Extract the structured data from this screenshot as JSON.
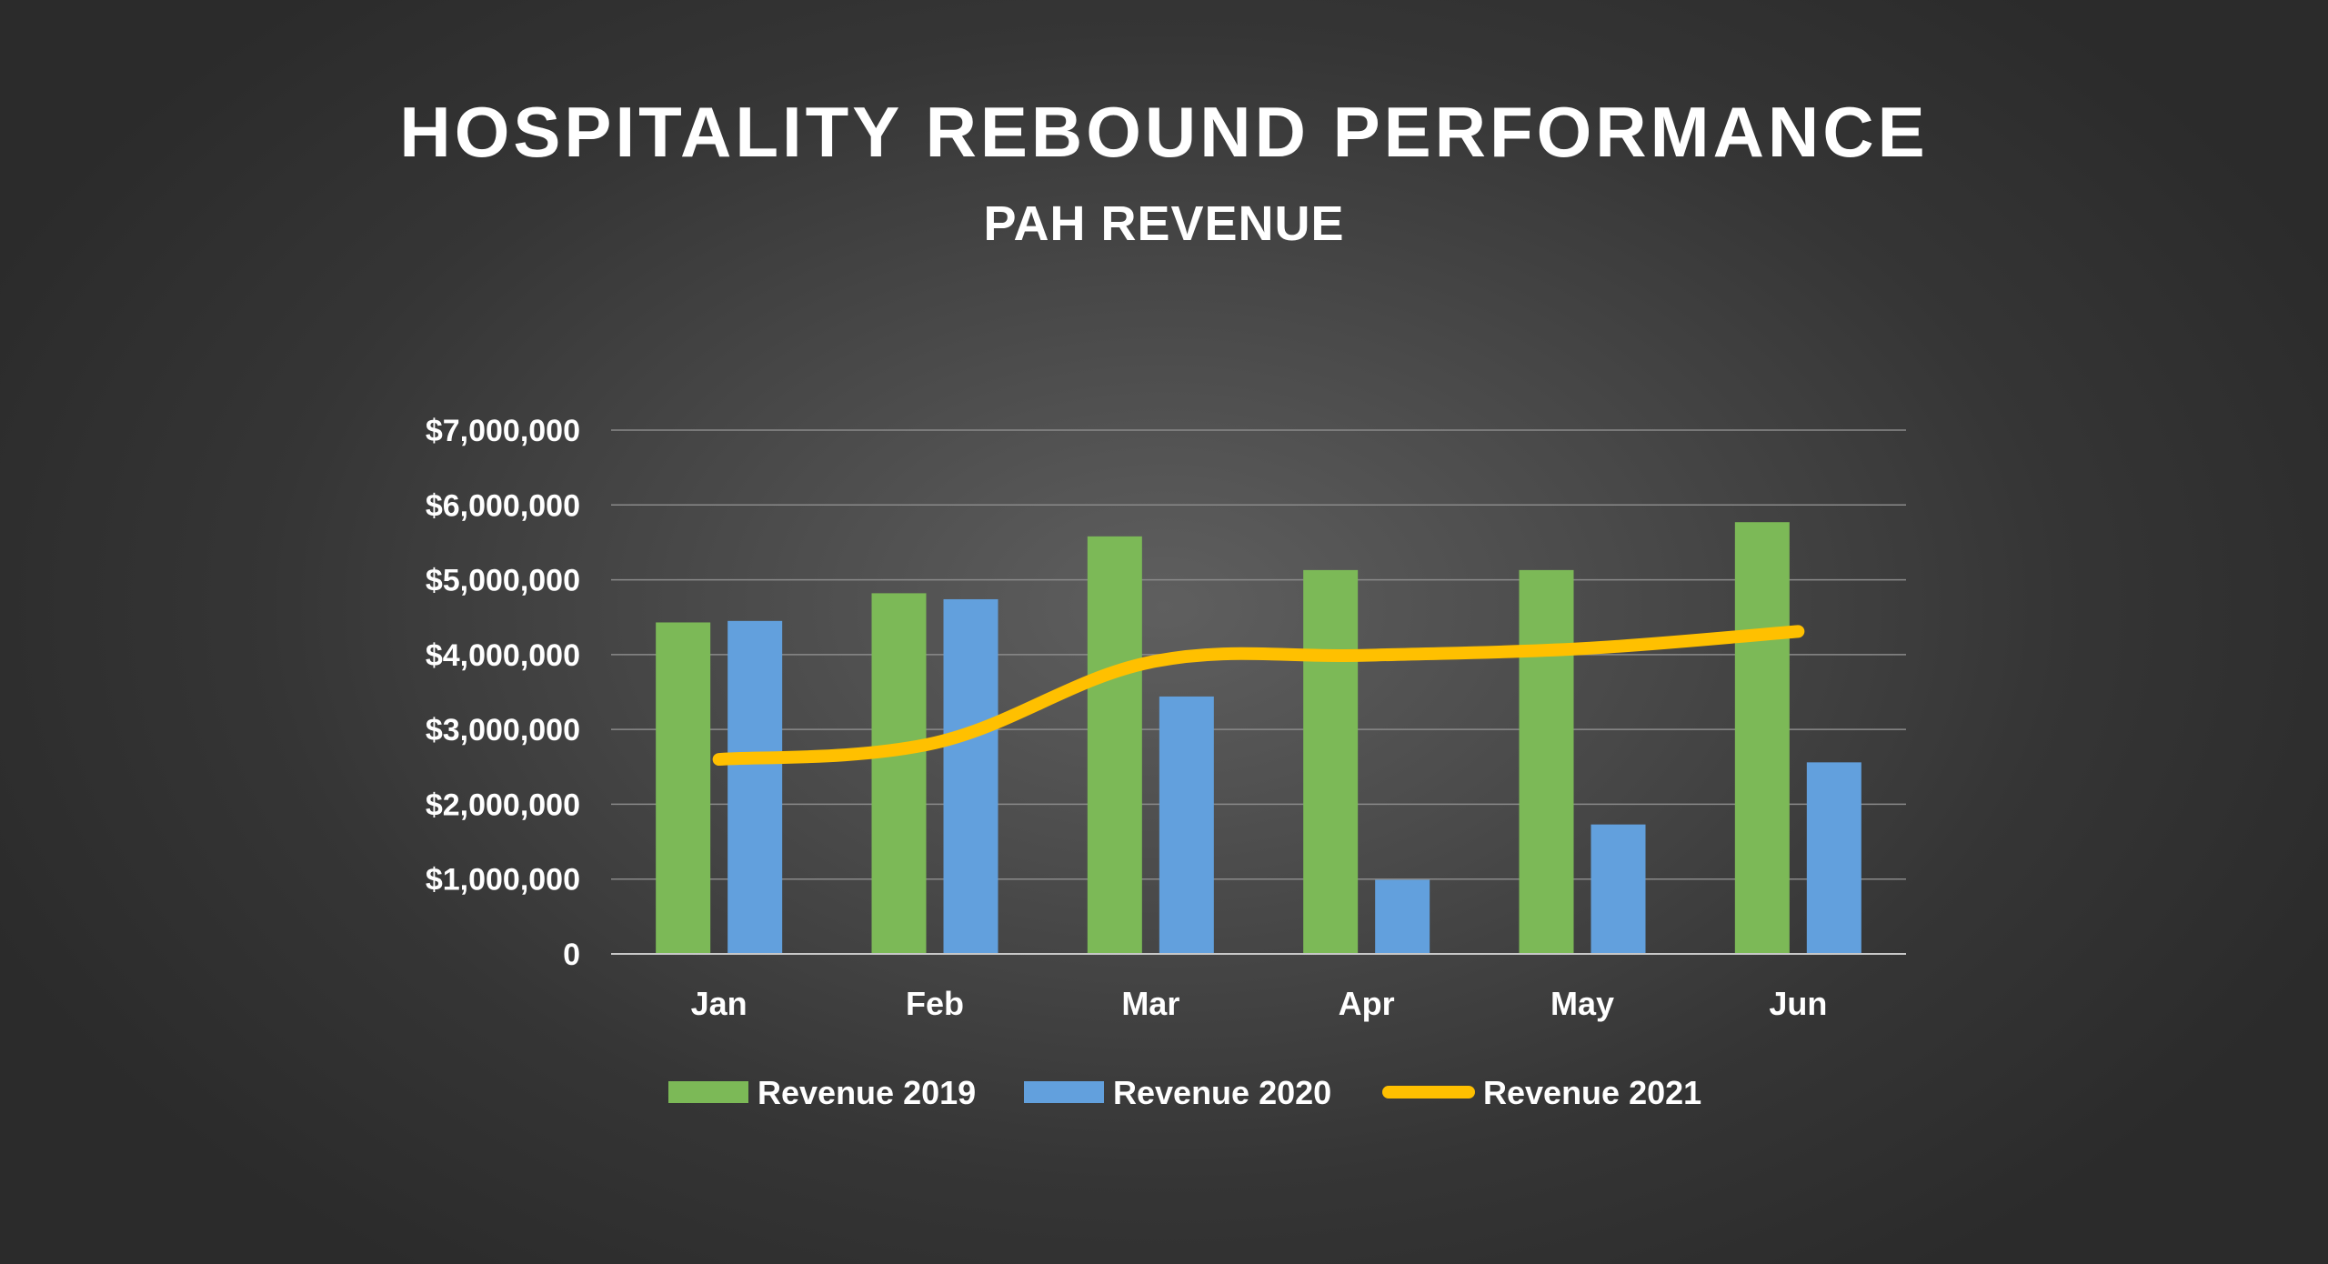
{
  "chart_data": {
    "type": "bar",
    "title": "HOSPITALITY REBOUND PERFORMANCE",
    "subtitle": "PAH REVENUE",
    "categories": [
      "Jan",
      "Feb",
      "Mar",
      "Apr",
      "May",
      "Jun"
    ],
    "series": [
      {
        "name": "Revenue 2019",
        "type": "bar",
        "color": "#7cb957",
        "values": [
          4430000,
          4820000,
          5580000,
          5130000,
          5130000,
          5770000
        ]
      },
      {
        "name": "Revenue 2020",
        "type": "bar",
        "color": "#62a0dd",
        "values": [
          4450000,
          4740000,
          3440000,
          990000,
          1730000,
          2560000
        ]
      },
      {
        "name": "Revenue 2021",
        "type": "line",
        "color": "#ffc000",
        "values": [
          2600000,
          2820000,
          3900000,
          3990000,
          4080000,
          4310000
        ]
      }
    ],
    "ylim": [
      0,
      7000000
    ],
    "yticks": [
      0,
      1000000,
      2000000,
      3000000,
      4000000,
      5000000,
      6000000,
      7000000
    ],
    "ytick_labels": [
      "0",
      "$1,000,000",
      "$2,000,000",
      "$3,000,000",
      "$4,000,000",
      "$5,000,000",
      "$6,000,000",
      "$7,000,000"
    ],
    "xlabel": "",
    "ylabel": "",
    "grid": true,
    "legend_position": "bottom"
  }
}
